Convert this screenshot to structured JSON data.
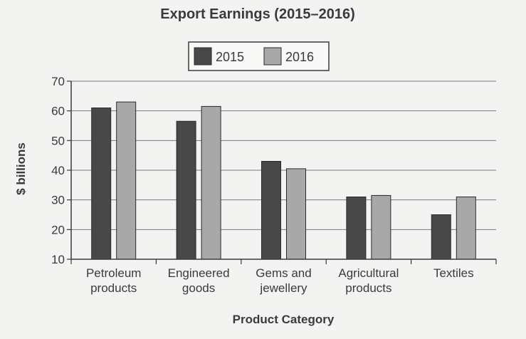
{
  "chart_data": {
    "type": "bar",
    "title": "Export Earnings (2015–2016)",
    "xlabel": "Product Category",
    "ylabel": "$ billions",
    "ylim": [
      10,
      70
    ],
    "yticks": [
      10,
      20,
      30,
      40,
      50,
      60,
      70
    ],
    "grid": true,
    "legend_position": "top-center",
    "categories": [
      [
        "Petroleum",
        "products"
      ],
      [
        "Engineered",
        "goods"
      ],
      [
        "Gems and",
        "jewellery"
      ],
      [
        "Agricultural",
        "products"
      ],
      [
        "Textiles"
      ]
    ],
    "series": [
      {
        "name": "2015",
        "color": "#484848",
        "values": [
          61,
          56.5,
          43,
          31,
          25
        ]
      },
      {
        "name": "2016",
        "color": "#a8a8a8",
        "values": [
          63,
          61.5,
          40.5,
          31.5,
          31
        ]
      }
    ]
  }
}
